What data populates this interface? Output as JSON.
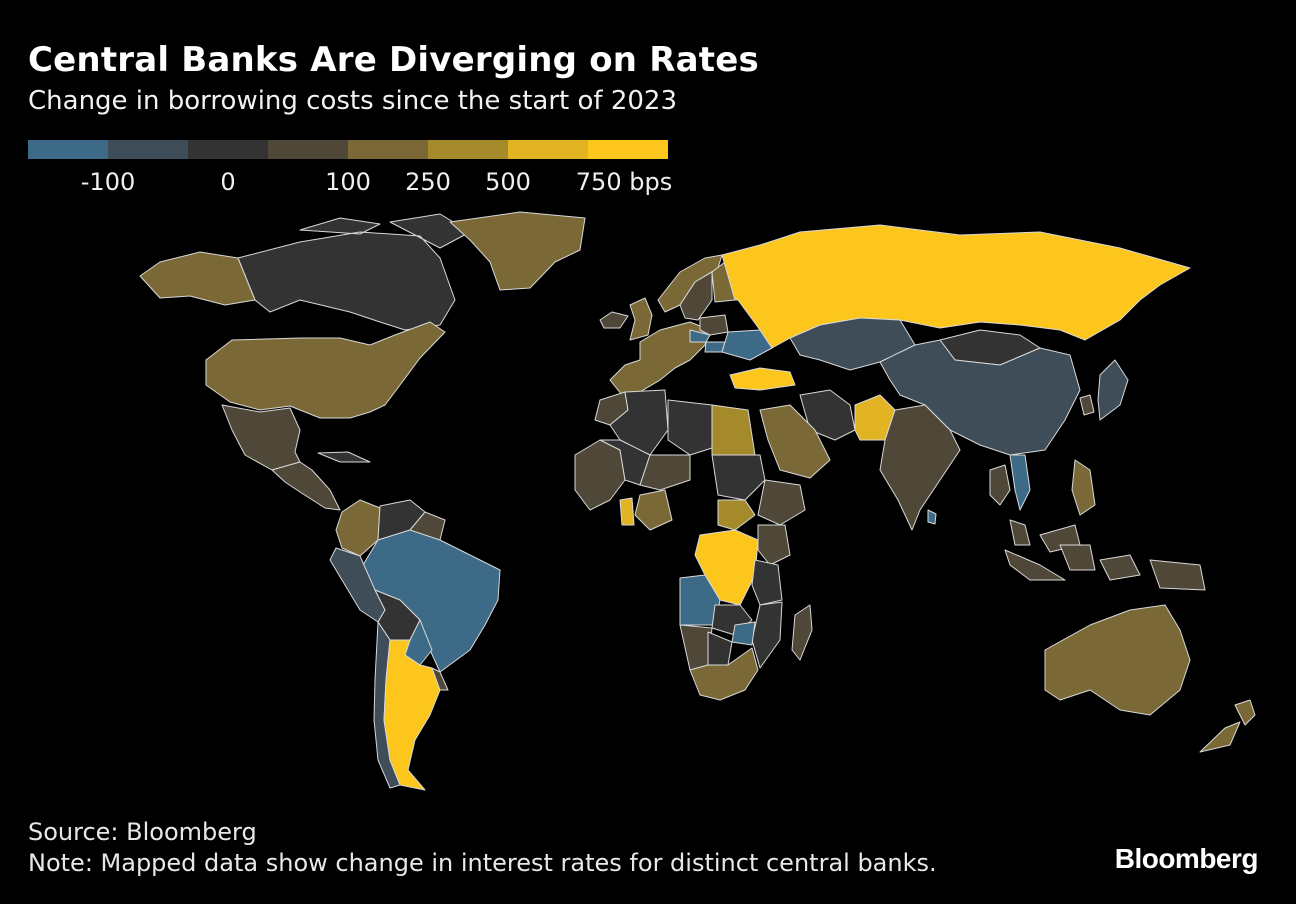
{
  "title": "Central Banks Are Diverging on Rates",
  "subtitle": "Change in borrowing costs since the start of 2023",
  "legend": {
    "swatches": [
      "#3d6a87",
      "#3f4d58",
      "#333333",
      "#4f4737",
      "#7a6937",
      "#a58a2c",
      "#e2b322",
      "#fdc61c"
    ],
    "labels": [
      "-100",
      "0",
      "100",
      "250",
      "500",
      "750 bps"
    ]
  },
  "colors": {
    "background": "#000000",
    "border": "#d8d8d8",
    "no_data": "#000000"
  },
  "source": "Source: Bloomberg",
  "note": "Note: Mapped data show change in interest rates for distinct central banks.",
  "brand": "Bloomberg",
  "regions": [
    {
      "name": "Canada",
      "class": 2
    },
    {
      "name": "Alaska",
      "class": 4
    },
    {
      "name": "Greenland",
      "class": 4
    },
    {
      "name": "United States",
      "class": 4
    },
    {
      "name": "Mexico",
      "class": 3
    },
    {
      "name": "Central America",
      "class": 3
    },
    {
      "name": "Cuba",
      "class": 2
    },
    {
      "name": "Colombia",
      "class": 4
    },
    {
      "name": "Venezuela",
      "class": 2
    },
    {
      "name": "Guyana",
      "class": 3
    },
    {
      "name": "Brazil",
      "class": 0
    },
    {
      "name": "Peru",
      "class": 1
    },
    {
      "name": "Chile",
      "class": 1
    },
    {
      "name": "Bolivia",
      "class": 2
    },
    {
      "name": "Paraguay",
      "class": 0
    },
    {
      "name": "Argentina",
      "class": 7
    },
    {
      "name": "Uruguay",
      "class": 3
    },
    {
      "name": "Iceland",
      "class": 3
    },
    {
      "name": "Norway",
      "class": 4
    },
    {
      "name": "Sweden",
      "class": 3
    },
    {
      "name": "Finland",
      "class": 4
    },
    {
      "name": "United Kingdom",
      "class": 4
    },
    {
      "name": "Euro Area",
      "class": 4
    },
    {
      "name": "Poland",
      "class": 3
    },
    {
      "name": "Czech Republic",
      "class": 0
    },
    {
      "name": "Hungary",
      "class": 0
    },
    {
      "name": "Ukraine",
      "class": 0
    },
    {
      "name": "Turkey",
      "class": 7
    },
    {
      "name": "Russia",
      "class": 7
    },
    {
      "name": "Kazakhstan",
      "class": 1
    },
    {
      "name": "Mongolia",
      "class": 2
    },
    {
      "name": "China",
      "class": 1
    },
    {
      "name": "Japan",
      "class": 1
    },
    {
      "name": "South Korea",
      "class": 3
    },
    {
      "name": "India",
      "class": 3
    },
    {
      "name": "Pakistan",
      "class": 6
    },
    {
      "name": "Iran",
      "class": 2
    },
    {
      "name": "Saudi Arabia",
      "class": 4
    },
    {
      "name": "Egypt",
      "class": 5
    },
    {
      "name": "Morocco",
      "class": 3
    },
    {
      "name": "Algeria",
      "class": 2
    },
    {
      "name": "Libya",
      "class": 2
    },
    {
      "name": "West Africa",
      "class": 3
    },
    {
      "name": "Mali",
      "class": 2
    },
    {
      "name": "Niger",
      "class": 3
    },
    {
      "name": "Nigeria",
      "class": 4
    },
    {
      "name": "Ghana",
      "class": 6
    },
    {
      "name": "Sudan",
      "class": 2
    },
    {
      "name": "Ethiopia",
      "class": 3
    },
    {
      "name": "South Sudan",
      "class": 5
    },
    {
      "name": "DR Congo",
      "class": 7
    },
    {
      "name": "Angola",
      "class": 0
    },
    {
      "name": "Zambia",
      "class": 2
    },
    {
      "name": "Tanzania",
      "class": 2
    },
    {
      "name": "Kenya",
      "class": 3
    },
    {
      "name": "Mozambique",
      "class": 2
    },
    {
      "name": "Zimbabwe",
      "class": 0
    },
    {
      "name": "Botswana",
      "class": 2
    },
    {
      "name": "Namibia",
      "class": 3
    },
    {
      "name": "South Africa",
      "class": 4
    },
    {
      "name": "Madagascar",
      "class": 3
    },
    {
      "name": "Thailand",
      "class": 3
    },
    {
      "name": "Vietnam",
      "class": 0
    },
    {
      "name": "Philippines",
      "class": 4
    },
    {
      "name": "Malaysia",
      "class": 3
    },
    {
      "name": "Indonesia",
      "class": 3
    },
    {
      "name": "Sri Lanka",
      "class": 0
    },
    {
      "name": "Australia",
      "class": 4
    },
    {
      "name": "New Zealand",
      "class": 4
    }
  ]
}
